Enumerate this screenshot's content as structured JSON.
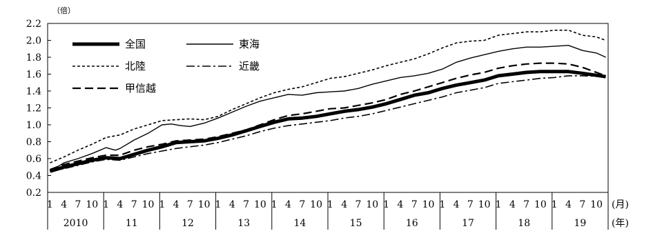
{
  "chart_data": {
    "type": "line",
    "y_unit": "（倍）",
    "x_month_unit": "(月)",
    "x_year_unit": "(年)",
    "ylim": [
      0.2,
      2.2
    ],
    "yticks": [
      "0.2",
      "0.4",
      "0.6",
      "0.8",
      "1.0",
      "1.2",
      "1.4",
      "1.6",
      "1.8",
      "2.0",
      "2.2"
    ],
    "years": [
      "2010",
      "11",
      "12",
      "13",
      "14",
      "15",
      "16",
      "17",
      "18",
      "19"
    ],
    "month_tick_labels": [
      [
        "1",
        "4",
        "7",
        "10"
      ],
      [
        "1",
        "4",
        "7",
        "10"
      ],
      [
        "1",
        "4",
        "7",
        "10"
      ],
      [
        "1",
        "4",
        "7",
        "10"
      ],
      [
        "1",
        "4",
        "7",
        "10"
      ],
      [
        "1",
        "4",
        "7",
        "10"
      ],
      [
        "1",
        "4",
        "7",
        "10"
      ],
      [
        "1",
        "4",
        "7",
        "10"
      ],
      [
        "1",
        "4",
        "7",
        "10"
      ],
      [
        "1",
        "4",
        "7",
        "10"
      ]
    ],
    "month_tick_positions": [
      1,
      4,
      7,
      10
    ],
    "legend": [
      "全国",
      "東海",
      "北陸",
      "近畿",
      "甲信越"
    ],
    "series": [
      {
        "name": "全国",
        "style": "thick-solid",
        "points": [
          [
            0,
            0.45
          ],
          [
            3,
            0.5
          ],
          [
            6,
            0.54
          ],
          [
            9,
            0.58
          ],
          [
            12,
            0.61
          ],
          [
            15,
            0.6
          ],
          [
            18,
            0.65
          ],
          [
            21,
            0.7
          ],
          [
            24,
            0.74
          ],
          [
            27,
            0.79
          ],
          [
            30,
            0.8
          ],
          [
            33,
            0.81
          ],
          [
            36,
            0.84
          ],
          [
            39,
            0.88
          ],
          [
            42,
            0.93
          ],
          [
            45,
            0.98
          ],
          [
            48,
            1.03
          ],
          [
            51,
            1.07
          ],
          [
            54,
            1.08
          ],
          [
            57,
            1.1
          ],
          [
            60,
            1.13
          ],
          [
            63,
            1.16
          ],
          [
            66,
            1.18
          ],
          [
            69,
            1.21
          ],
          [
            72,
            1.25
          ],
          [
            75,
            1.3
          ],
          [
            78,
            1.35
          ],
          [
            81,
            1.38
          ],
          [
            84,
            1.43
          ],
          [
            87,
            1.47
          ],
          [
            90,
            1.5
          ],
          [
            93,
            1.53
          ],
          [
            96,
            1.58
          ],
          [
            99,
            1.6
          ],
          [
            102,
            1.62
          ],
          [
            105,
            1.63
          ],
          [
            108,
            1.63
          ],
          [
            111,
            1.63
          ],
          [
            114,
            1.61
          ],
          [
            119,
            1.57
          ]
        ]
      },
      {
        "name": "東海",
        "style": "thin-solid",
        "points": [
          [
            0,
            0.45
          ],
          [
            3,
            0.55
          ],
          [
            6,
            0.6
          ],
          [
            9,
            0.66
          ],
          [
            12,
            0.73
          ],
          [
            14,
            0.7
          ],
          [
            15,
            0.72
          ],
          [
            18,
            0.82
          ],
          [
            21,
            0.9
          ],
          [
            24,
            1.0
          ],
          [
            26,
            1.01
          ],
          [
            28,
            0.99
          ],
          [
            30,
            0.98
          ],
          [
            33,
            1.02
          ],
          [
            36,
            1.08
          ],
          [
            39,
            1.15
          ],
          [
            42,
            1.22
          ],
          [
            45,
            1.28
          ],
          [
            48,
            1.32
          ],
          [
            51,
            1.36
          ],
          [
            54,
            1.35
          ],
          [
            57,
            1.38
          ],
          [
            60,
            1.39
          ],
          [
            63,
            1.4
          ],
          [
            66,
            1.43
          ],
          [
            69,
            1.48
          ],
          [
            72,
            1.52
          ],
          [
            75,
            1.56
          ],
          [
            78,
            1.58
          ],
          [
            81,
            1.61
          ],
          [
            84,
            1.66
          ],
          [
            87,
            1.74
          ],
          [
            90,
            1.79
          ],
          [
            93,
            1.83
          ],
          [
            96,
            1.87
          ],
          [
            99,
            1.9
          ],
          [
            102,
            1.92
          ],
          [
            105,
            1.92
          ],
          [
            108,
            1.93
          ],
          [
            111,
            1.94
          ],
          [
            114,
            1.88
          ],
          [
            117,
            1.85
          ],
          [
            119,
            1.8
          ]
        ]
      },
      {
        "name": "北陸",
        "style": "short-dash",
        "points": [
          [
            0,
            0.55
          ],
          [
            3,
            0.62
          ],
          [
            6,
            0.7
          ],
          [
            9,
            0.77
          ],
          [
            12,
            0.85
          ],
          [
            15,
            0.88
          ],
          [
            18,
            0.95
          ],
          [
            21,
            1.0
          ],
          [
            24,
            1.05
          ],
          [
            27,
            1.06
          ],
          [
            30,
            1.07
          ],
          [
            33,
            1.06
          ],
          [
            36,
            1.1
          ],
          [
            39,
            1.18
          ],
          [
            42,
            1.25
          ],
          [
            45,
            1.32
          ],
          [
            48,
            1.38
          ],
          [
            51,
            1.42
          ],
          [
            54,
            1.45
          ],
          [
            57,
            1.5
          ],
          [
            60,
            1.55
          ],
          [
            63,
            1.57
          ],
          [
            66,
            1.61
          ],
          [
            69,
            1.65
          ],
          [
            72,
            1.7
          ],
          [
            75,
            1.74
          ],
          [
            78,
            1.78
          ],
          [
            81,
            1.84
          ],
          [
            84,
            1.91
          ],
          [
            87,
            1.97
          ],
          [
            90,
            1.99
          ],
          [
            93,
            2.0
          ],
          [
            96,
            2.06
          ],
          [
            99,
            2.08
          ],
          [
            102,
            2.1
          ],
          [
            105,
            2.1
          ],
          [
            108,
            2.12
          ],
          [
            111,
            2.12
          ],
          [
            114,
            2.06
          ],
          [
            117,
            2.04
          ],
          [
            119,
            2.0
          ]
        ]
      },
      {
        "name": "近畿",
        "style": "dash-dot",
        "points": [
          [
            0,
            0.45
          ],
          [
            3,
            0.48
          ],
          [
            6,
            0.52
          ],
          [
            9,
            0.56
          ],
          [
            12,
            0.59
          ],
          [
            15,
            0.58
          ],
          [
            18,
            0.62
          ],
          [
            21,
            0.66
          ],
          [
            24,
            0.69
          ],
          [
            27,
            0.72
          ],
          [
            30,
            0.74
          ],
          [
            33,
            0.76
          ],
          [
            36,
            0.79
          ],
          [
            39,
            0.83
          ],
          [
            42,
            0.87
          ],
          [
            45,
            0.92
          ],
          [
            48,
            0.96
          ],
          [
            51,
            0.99
          ],
          [
            54,
            1.01
          ],
          [
            57,
            1.03
          ],
          [
            60,
            1.05
          ],
          [
            63,
            1.08
          ],
          [
            66,
            1.1
          ],
          [
            69,
            1.13
          ],
          [
            72,
            1.17
          ],
          [
            75,
            1.21
          ],
          [
            78,
            1.25
          ],
          [
            81,
            1.29
          ],
          [
            84,
            1.33
          ],
          [
            87,
            1.38
          ],
          [
            90,
            1.41
          ],
          [
            93,
            1.44
          ],
          [
            96,
            1.49
          ],
          [
            99,
            1.51
          ],
          [
            102,
            1.53
          ],
          [
            105,
            1.55
          ],
          [
            108,
            1.56
          ],
          [
            111,
            1.58
          ],
          [
            114,
            1.58
          ],
          [
            119,
            1.57
          ]
        ]
      },
      {
        "name": "甲信越",
        "style": "long-dash",
        "points": [
          [
            0,
            0.47
          ],
          [
            3,
            0.53
          ],
          [
            6,
            0.57
          ],
          [
            9,
            0.61
          ],
          [
            12,
            0.64
          ],
          [
            15,
            0.64
          ],
          [
            18,
            0.7
          ],
          [
            21,
            0.74
          ],
          [
            24,
            0.77
          ],
          [
            27,
            0.81
          ],
          [
            30,
            0.82
          ],
          [
            33,
            0.83
          ],
          [
            36,
            0.86
          ],
          [
            39,
            0.9
          ],
          [
            42,
            0.94
          ],
          [
            45,
            1.0
          ],
          [
            48,
            1.06
          ],
          [
            51,
            1.11
          ],
          [
            54,
            1.13
          ],
          [
            57,
            1.16
          ],
          [
            60,
            1.19
          ],
          [
            63,
            1.2
          ],
          [
            66,
            1.23
          ],
          [
            69,
            1.26
          ],
          [
            72,
            1.3
          ],
          [
            75,
            1.36
          ],
          [
            78,
            1.4
          ],
          [
            81,
            1.45
          ],
          [
            84,
            1.5
          ],
          [
            87,
            1.55
          ],
          [
            90,
            1.59
          ],
          [
            93,
            1.62
          ],
          [
            96,
            1.67
          ],
          [
            99,
            1.7
          ],
          [
            102,
            1.72
          ],
          [
            105,
            1.73
          ],
          [
            108,
            1.73
          ],
          [
            111,
            1.72
          ],
          [
            114,
            1.68
          ],
          [
            119,
            1.58
          ]
        ]
      }
    ]
  }
}
